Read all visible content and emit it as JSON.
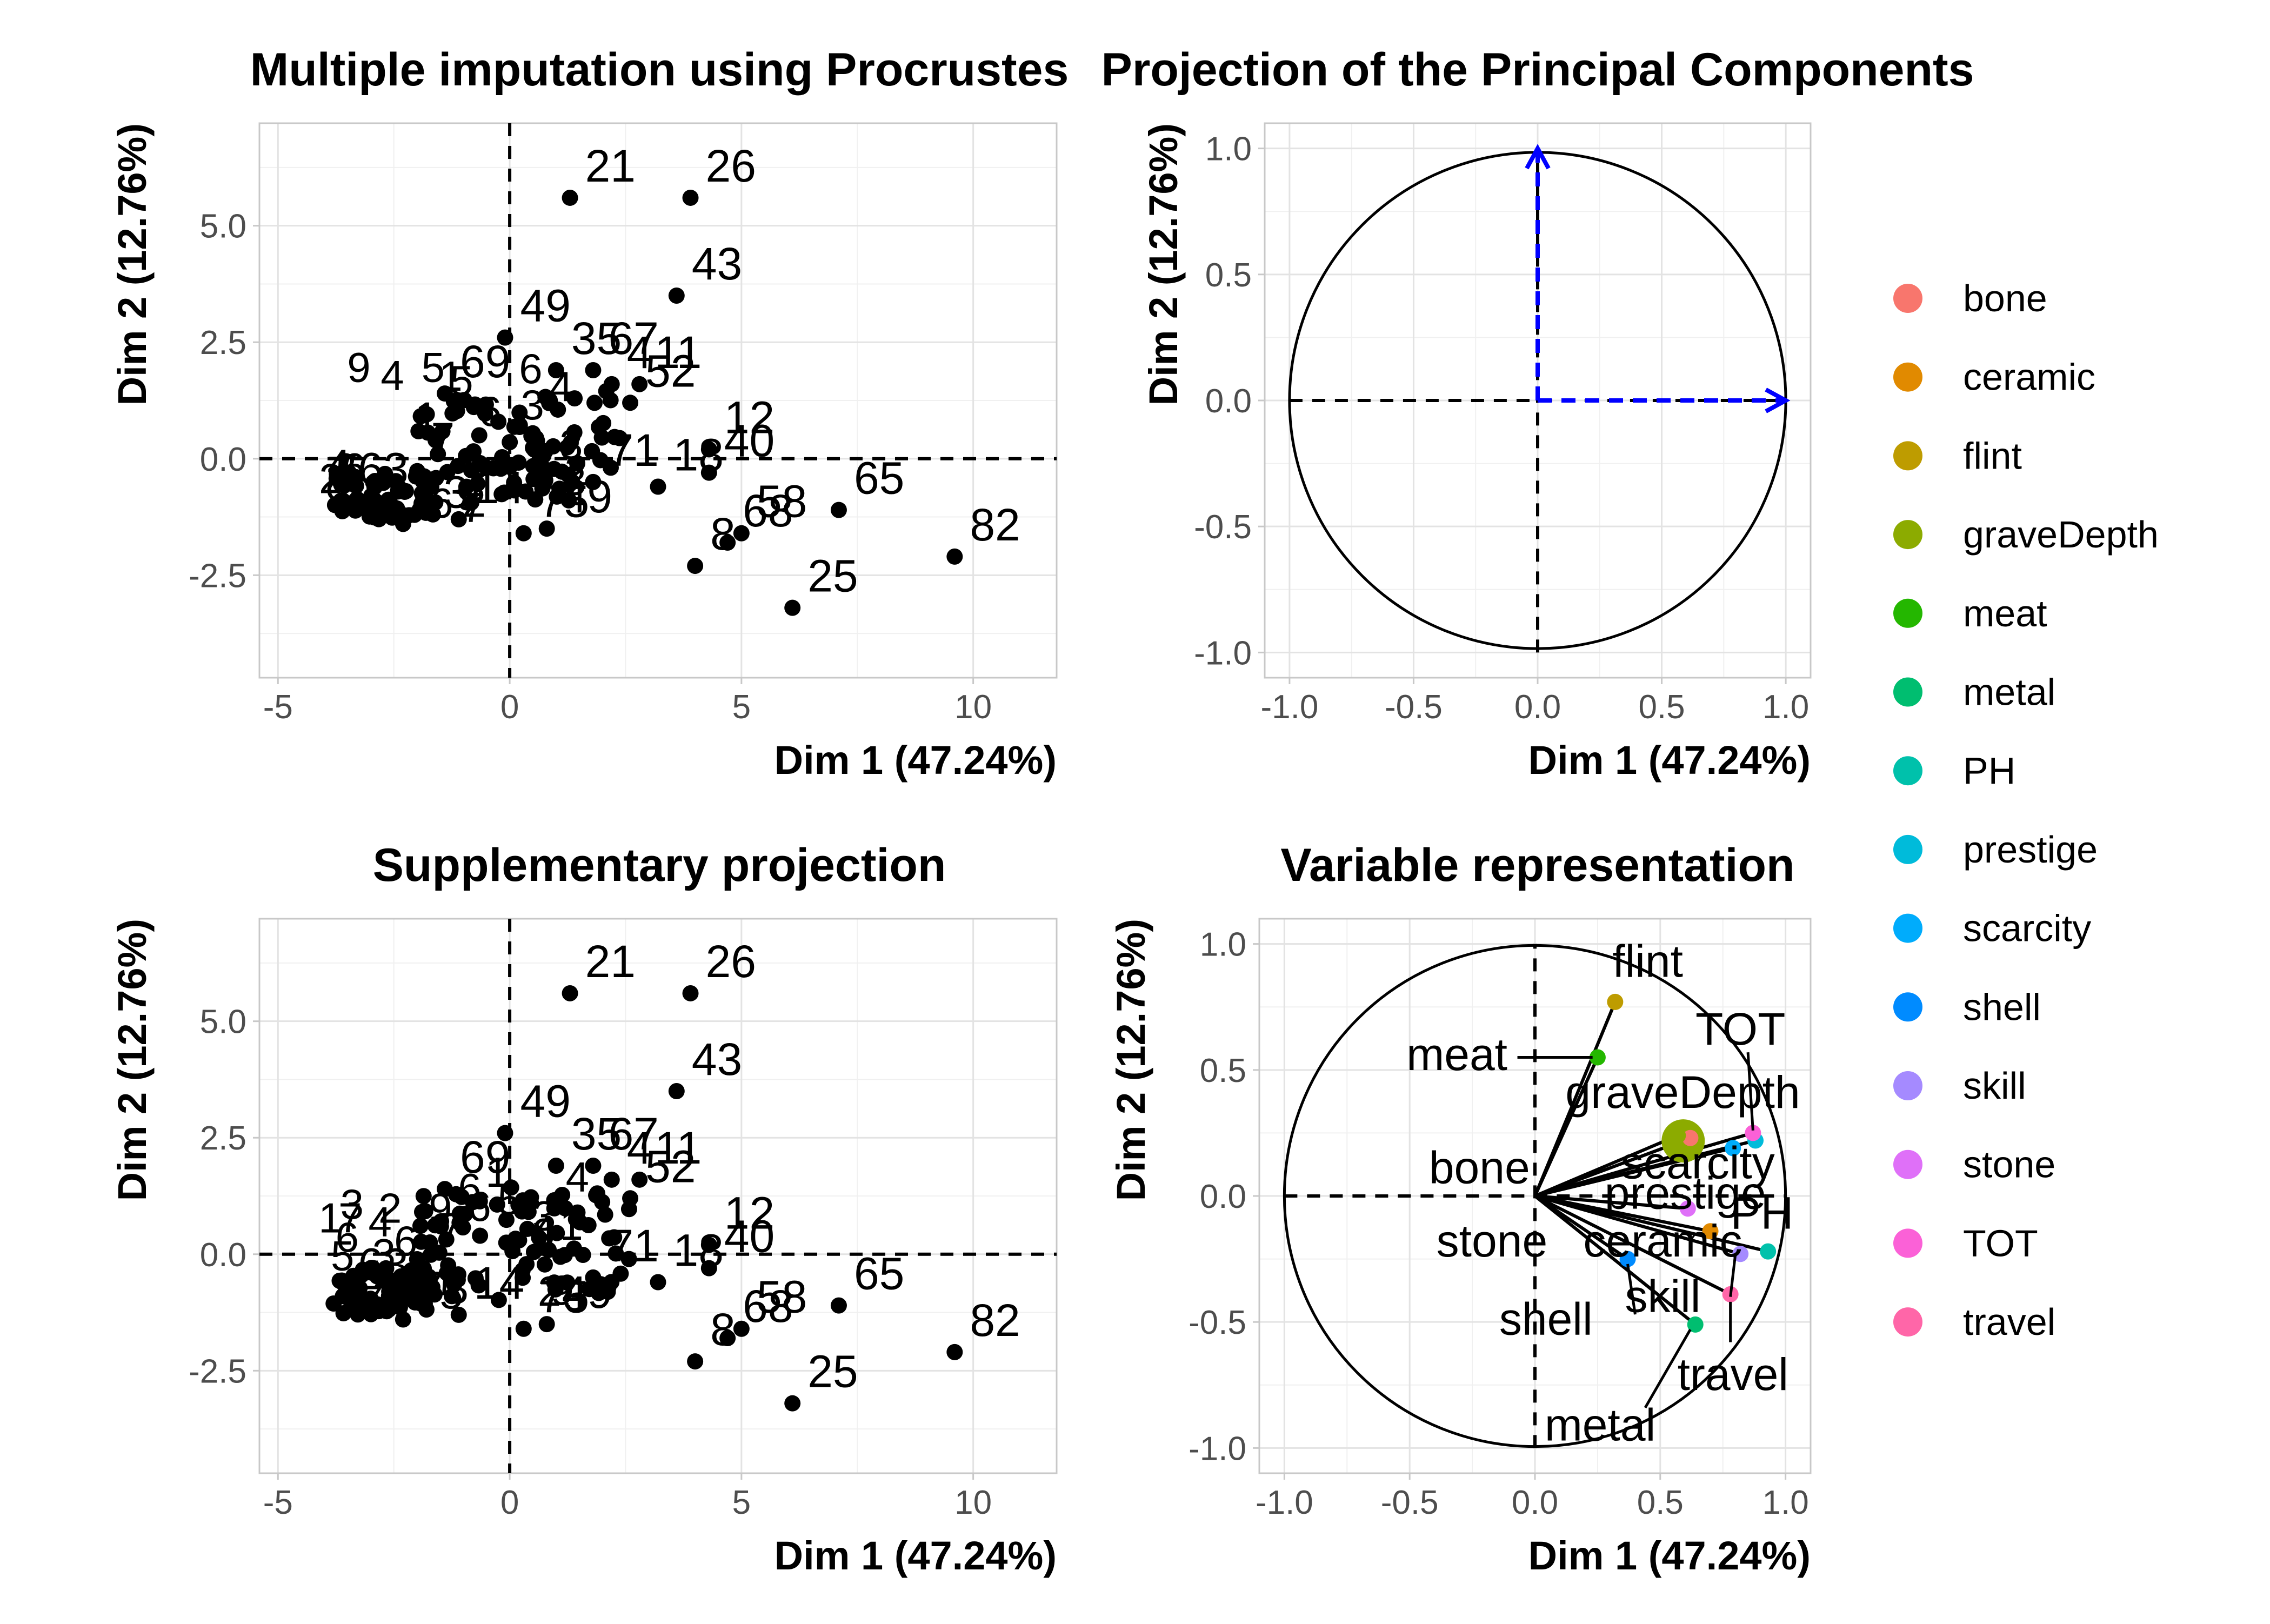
{
  "chart_data": [
    {
      "type": "scatter",
      "title": "Multiple imputation using Procrustes",
      "xlabel": "Dim 1 (47.24%)",
      "ylabel": "Dim 2 (12.76%)",
      "xlim": [
        -5.4,
        11.8
      ],
      "ylim": [
        -4.7,
        7.2
      ],
      "xticks": [
        -5,
        0,
        5,
        10
      ],
      "yticks": [
        -2.5,
        0.0,
        2.5,
        5.0
      ],
      "xtick_labels": [
        "-5",
        "0",
        "5",
        "10"
      ],
      "ytick_labels": [
        "-2.5",
        "0.0",
        "2.5",
        "5.0"
      ],
      "grid": true,
      "reference_lines": [
        "x = 0",
        "y = 0"
      ],
      "points": [
        {
          "label": "21",
          "x": 1.3,
          "y": 5.6
        },
        {
          "label": "26",
          "x": 3.9,
          "y": 5.6
        },
        {
          "label": "43",
          "x": 3.6,
          "y": 3.5
        },
        {
          "label": "49",
          "x": -0.1,
          "y": 2.6
        },
        {
          "label": "35",
          "x": 1.0,
          "y": 1.9
        },
        {
          "label": "67",
          "x": 1.8,
          "y": 1.9
        },
        {
          "label": "4",
          "x": 2.2,
          "y": 1.6
        },
        {
          "label": "11",
          "x": 2.8,
          "y": 1.6
        },
        {
          "label": "52",
          "x": 2.6,
          "y": 1.2
        },
        {
          "label": "69",
          "x": -1.4,
          "y": 1.4
        },
        {
          "label": "12",
          "x": 4.3,
          "y": 0.2
        },
        {
          "label": "40",
          "x": 4.3,
          "y": -0.3
        },
        {
          "label": "65",
          "x": 7.1,
          "y": -1.1
        },
        {
          "label": "82",
          "x": 9.6,
          "y": -2.1
        },
        {
          "label": "58",
          "x": 5.0,
          "y": -1.6
        },
        {
          "label": "68",
          "x": 4.7,
          "y": -1.8
        },
        {
          "label": "8",
          "x": 4.0,
          "y": -2.3
        },
        {
          "label": "25",
          "x": 6.1,
          "y": -3.2
        },
        {
          "label": "18",
          "x": 3.2,
          "y": -0.6
        },
        {
          "label": "71",
          "x": 1.8,
          "y": -0.5
        },
        {
          "label": "75",
          "x": 0.3,
          "y": -1.6
        },
        {
          "label": "49b",
          "x": 0.8,
          "y": -1.5
        },
        {
          "label": "73",
          "x": -2.3,
          "y": -1.4
        },
        {
          "label": "14",
          "x": -1.1,
          "y": -1.3
        },
        {
          "label": "63",
          "x": -3.6,
          "y": -0.9
        }
      ]
    },
    {
      "type": "line",
      "title": "Projection of the Principal Components",
      "xlabel": "Dim 1 (47.24%)",
      "ylabel": "Dim 2 (12.76%)",
      "xlim": [
        -1.1,
        1.1
      ],
      "ylim": [
        -1.1,
        1.1
      ],
      "xticks": [
        -1.0,
        -0.5,
        0.0,
        0.5,
        1.0
      ],
      "yticks": [
        -1.0,
        -0.5,
        0.0,
        0.5,
        1.0
      ],
      "xtick_labels": [
        "-1.0",
        "-0.5",
        "0.0",
        "0.5",
        "1.0"
      ],
      "ytick_labels": [
        "-1.0",
        "-0.5",
        "0.0",
        "0.5",
        "1.0"
      ],
      "grid": true,
      "unit_circle": true,
      "arrow_color": "#0000ff",
      "arrows": [
        {
          "x": 1.0,
          "y": 0.0
        },
        {
          "x": 0.0,
          "y": 1.0
        }
      ]
    },
    {
      "type": "scatter",
      "title": "Supplementary projection",
      "xlabel": "Dim 1 (47.24%)",
      "ylabel": "Dim 2 (12.76%)",
      "xlim": [
        -5.4,
        11.8
      ],
      "ylim": [
        -4.7,
        7.2
      ],
      "xticks": [
        -5,
        0,
        5,
        10
      ],
      "yticks": [
        -2.5,
        0.0,
        2.5,
        5.0
      ],
      "xtick_labels": [
        "-5",
        "0",
        "5",
        "10"
      ],
      "ytick_labels": [
        "-2.5",
        "0.0",
        "2.5",
        "5.0"
      ],
      "grid": true,
      "reference_lines": [
        "x = 0",
        "y = 0"
      ],
      "points": [
        {
          "label": "21",
          "x": 1.3,
          "y": 5.6
        },
        {
          "label": "26",
          "x": 3.9,
          "y": 5.6
        },
        {
          "label": "43",
          "x": 3.6,
          "y": 3.5
        },
        {
          "label": "49",
          "x": -0.1,
          "y": 2.6
        },
        {
          "label": "35",
          "x": 1.0,
          "y": 1.9
        },
        {
          "label": "67",
          "x": 1.8,
          "y": 1.9
        },
        {
          "label": "4",
          "x": 2.2,
          "y": 1.6
        },
        {
          "label": "11",
          "x": 2.8,
          "y": 1.6
        },
        {
          "label": "52",
          "x": 2.6,
          "y": 1.2
        },
        {
          "label": "69",
          "x": -1.4,
          "y": 1.4
        },
        {
          "label": "12",
          "x": 4.3,
          "y": 0.2
        },
        {
          "label": "40",
          "x": 4.3,
          "y": -0.3
        },
        {
          "label": "65",
          "x": 7.1,
          "y": -1.1
        },
        {
          "label": "82",
          "x": 9.6,
          "y": -2.1
        },
        {
          "label": "58",
          "x": 5.0,
          "y": -1.6
        },
        {
          "label": "68",
          "x": 4.7,
          "y": -1.8
        },
        {
          "label": "8",
          "x": 4.0,
          "y": -2.3
        },
        {
          "label": "25",
          "x": 6.1,
          "y": -3.2
        },
        {
          "label": "18",
          "x": 3.2,
          "y": -0.6
        },
        {
          "label": "71",
          "x": 1.8,
          "y": -0.5
        },
        {
          "label": "75",
          "x": 0.3,
          "y": -1.6
        },
        {
          "label": "49b",
          "x": 0.8,
          "y": -1.5
        },
        {
          "label": "73",
          "x": -2.3,
          "y": -1.4
        },
        {
          "label": "14",
          "x": -1.1,
          "y": -1.3
        },
        {
          "label": "63",
          "x": -3.6,
          "y": -0.9
        }
      ]
    },
    {
      "type": "scatter",
      "title": "Variable representation",
      "xlabel": "Dim 1 (47.24%)",
      "ylabel": "Dim 2 (12.76%)",
      "xlim": [
        -1.1,
        1.1
      ],
      "ylim": [
        -1.1,
        1.1
      ],
      "xticks": [
        -1.0,
        -0.5,
        0.0,
        0.5,
        1.0
      ],
      "yticks": [
        -1.0,
        -0.5,
        0.0,
        0.5,
        1.0
      ],
      "xtick_labels": [
        "-1.0",
        "-0.5",
        "0.0",
        "0.5",
        "1.0"
      ],
      "ytick_labels": [
        "-1.0",
        "-0.5",
        "0.0",
        "0.5",
        "1.0"
      ],
      "grid": true,
      "unit_circle": true,
      "legend_position": "right",
      "series": [
        {
          "name": "bone",
          "color": "#F8766D",
          "x": 0.62,
          "y": 0.23
        },
        {
          "name": "ceramic",
          "color": "#E18A00",
          "x": 0.7,
          "y": -0.14
        },
        {
          "name": "flint",
          "color": "#BE9C00",
          "x": 0.32,
          "y": 0.77
        },
        {
          "name": "graveDepth",
          "color": "#8CAB00",
          "x": 0.57,
          "y": 0.24
        },
        {
          "name": "meat",
          "color": "#24B700",
          "x": 0.25,
          "y": 0.55
        },
        {
          "name": "metal",
          "color": "#00BE70",
          "x": 0.64,
          "y": -0.51
        },
        {
          "name": "PH",
          "color": "#00C1AB",
          "x": 0.93,
          "y": -0.22
        },
        {
          "name": "prestige",
          "color": "#00BBDA",
          "x": 0.88,
          "y": 0.22
        },
        {
          "name": "scarcity",
          "color": "#00ACFC",
          "x": 0.79,
          "y": 0.19
        },
        {
          "name": "shell",
          "color": "#008BFF",
          "x": 0.37,
          "y": -0.25
        },
        {
          "name": "skill",
          "color": "#A58AFF",
          "x": 0.82,
          "y": -0.23
        },
        {
          "name": "stone",
          "color": "#DF70F8",
          "x": 0.61,
          "y": -0.05
        },
        {
          "name": "TOT",
          "color": "#FB61D7",
          "x": 0.87,
          "y": 0.25
        },
        {
          "name": "travel",
          "color": "#FF66A8",
          "x": 0.78,
          "y": -0.39
        }
      ],
      "annotations": [
        "flint",
        "TOT",
        "meat",
        "graveDepth",
        "scarcity",
        "bone",
        "prestige",
        "PH",
        "stone",
        "ceramic",
        "skill",
        "shell",
        "travel",
        "metal"
      ]
    }
  ]
}
